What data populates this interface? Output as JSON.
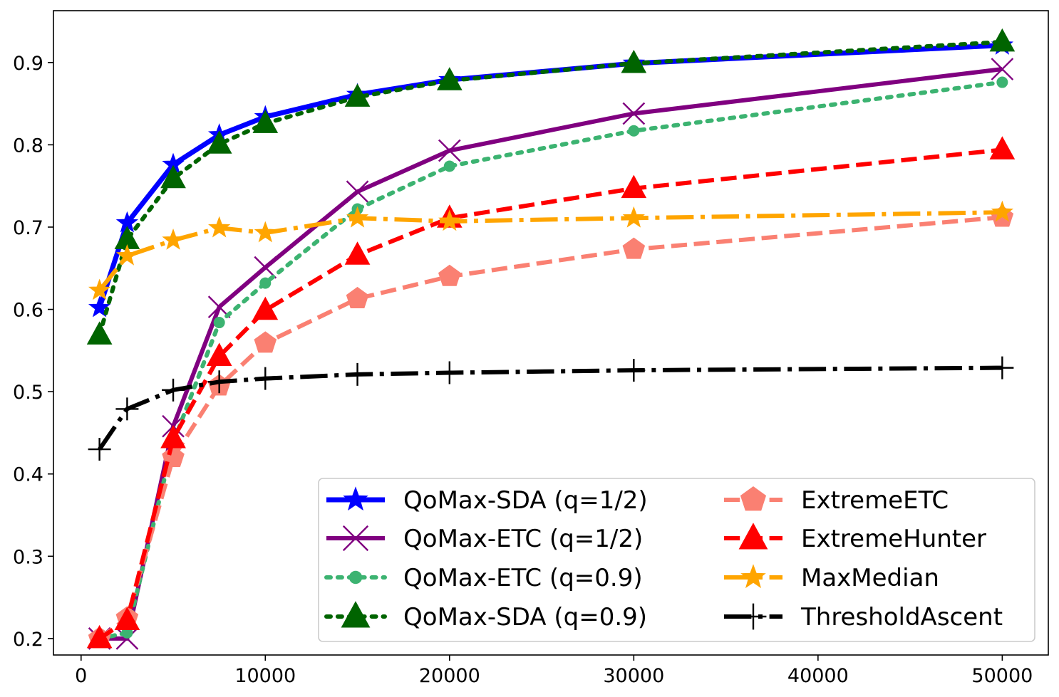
{
  "chart_data": {
    "type": "line",
    "title": "",
    "xlabel": "",
    "ylabel": "",
    "xlim": [
      -1500,
      52500
    ],
    "ylim": [
      0.18,
      0.963
    ],
    "x_ticks": [
      0,
      10000,
      20000,
      30000,
      40000,
      50000
    ],
    "y_ticks": [
      0.2,
      0.3,
      0.4,
      0.5,
      0.6,
      0.7,
      0.8,
      0.9
    ],
    "x_tick_labels": [
      "0",
      "10000",
      "20000",
      "30000",
      "40000",
      "50000"
    ],
    "y_tick_labels": [
      "0.2",
      "0.3",
      "0.4",
      "0.5",
      "0.6",
      "0.7",
      "0.8",
      "0.9"
    ],
    "grid": false,
    "legend_position": "lower-right",
    "x": [
      1000,
      2500,
      5000,
      7500,
      10000,
      15000,
      20000,
      30000,
      50000
    ],
    "series": [
      {
        "name": "QoMax-SDA (q=1/2)",
        "color": "#0000ff",
        "dash": "solid",
        "marker": "star",
        "width": 7,
        "values": [
          0.602,
          0.705,
          0.776,
          0.812,
          0.834,
          0.861,
          0.879,
          0.899,
          0.921
        ]
      },
      {
        "name": "QoMax-ETC (q=1/2)",
        "color": "#800080",
        "dash": "solid",
        "marker": "x",
        "width": 6,
        "values": [
          0.2,
          0.2,
          0.458,
          0.603,
          0.651,
          0.743,
          0.793,
          0.838,
          0.892
        ]
      },
      {
        "name": "QoMax-ETC (q=0.9)",
        "color": "#3cb371",
        "dash": "dot",
        "marker": "circle",
        "width": 6,
        "values": [
          0.2,
          0.207,
          0.438,
          0.584,
          0.632,
          0.722,
          0.774,
          0.817,
          0.876
        ]
      },
      {
        "name": "QoMax-SDA (q=0.9)",
        "color": "#006400",
        "dash": "dot",
        "marker": "triangle",
        "width": 6,
        "values": [
          0.569,
          0.685,
          0.759,
          0.801,
          0.826,
          0.858,
          0.878,
          0.899,
          0.925
        ]
      },
      {
        "name": "ExtremeETC",
        "color": "#fa8072",
        "dash": "dash",
        "marker": "pentagon",
        "width": 6,
        "values": [
          0.2,
          0.225,
          0.42,
          0.507,
          0.559,
          0.613,
          0.64,
          0.673,
          0.712
        ]
      },
      {
        "name": "ExtremeHunter",
        "color": "#ff0000",
        "dash": "dash",
        "marker": "triangle",
        "width": 6,
        "values": [
          0.2,
          0.222,
          0.443,
          0.543,
          0.599,
          0.666,
          0.711,
          0.747,
          0.794
        ]
      },
      {
        "name": "MaxMedian",
        "color": "#ffa500",
        "dash": "dashdot",
        "marker": "star",
        "width": 6,
        "values": [
          0.623,
          0.665,
          0.684,
          0.699,
          0.693,
          0.711,
          0.707,
          0.711,
          0.718
        ]
      },
      {
        "name": "ThresholdAscent",
        "color": "#000000",
        "dash": "dashdot",
        "marker": "plus",
        "width": 6,
        "values": [
          0.43,
          0.479,
          0.502,
          0.512,
          0.516,
          0.521,
          0.523,
          0.526,
          0.529
        ]
      }
    ],
    "legend_order": [
      0,
      1,
      2,
      3,
      4,
      5,
      6,
      7
    ]
  }
}
